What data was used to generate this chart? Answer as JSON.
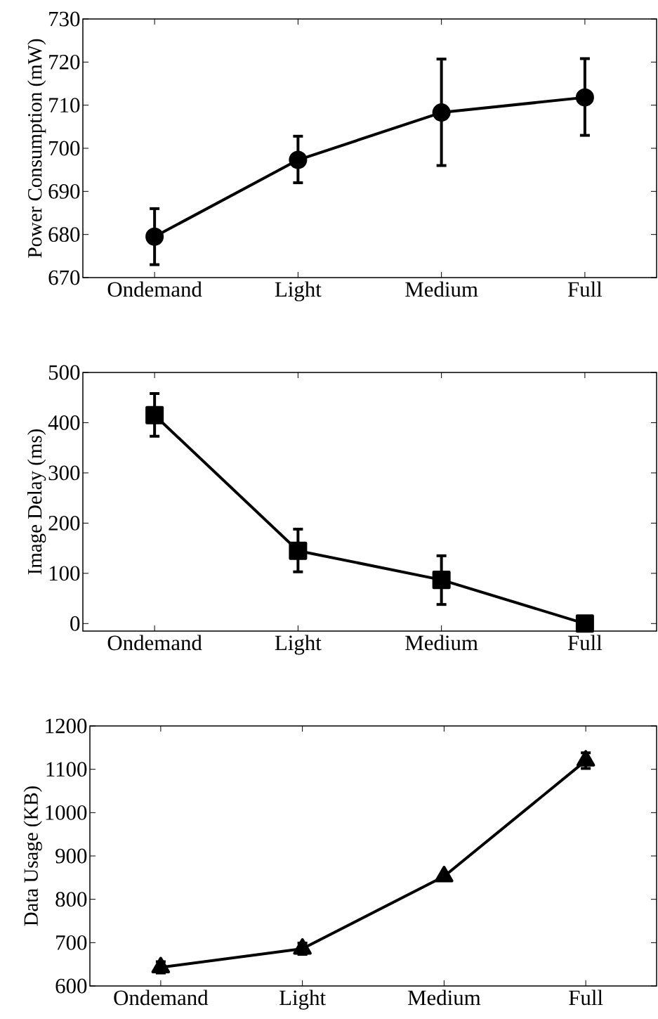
{
  "chart_data": [
    {
      "type": "line",
      "categories": [
        "Ondemand",
        "Light",
        "Medium",
        "Full"
      ],
      "ylabel": "Power Consumption (mW)",
      "color": "#000000",
      "marker": "circle",
      "values": [
        679.5,
        697.3,
        708.3,
        711.8
      ],
      "errors": [
        [
          673,
          686
        ],
        [
          692,
          702.8
        ],
        [
          696,
          720.7
        ],
        [
          703,
          720.8
        ]
      ],
      "ylim": [
        670,
        730
      ],
      "yticks": [
        670,
        680,
        690,
        700,
        710,
        720,
        730
      ]
    },
    {
      "type": "line",
      "categories": [
        "Ondemand",
        "Light",
        "Medium",
        "Full"
      ],
      "ylabel": "Image Delay (ms)",
      "color": "#000000",
      "marker": "square",
      "values": [
        415,
        145,
        87,
        0
      ],
      "errors": [
        [
          373,
          458
        ],
        [
          103,
          188
        ],
        [
          38,
          135
        ],
        null
      ],
      "ylim": [
        -15,
        500
      ],
      "yticks": [
        0,
        100,
        200,
        300,
        400,
        500
      ]
    },
    {
      "type": "line",
      "categories": [
        "Ondemand",
        "Light",
        "Medium",
        "Full"
      ],
      "ylabel": "Data Usage (KB)",
      "color": "#000000",
      "marker": "triangle",
      "values": [
        643,
        686,
        853,
        1120
      ],
      "errors": [
        13,
        13,
        null,
        18
      ],
      "ylim": [
        600,
        1200
      ],
      "yticks": [
        600,
        700,
        800,
        900,
        1000,
        1100,
        1200
      ]
    }
  ]
}
